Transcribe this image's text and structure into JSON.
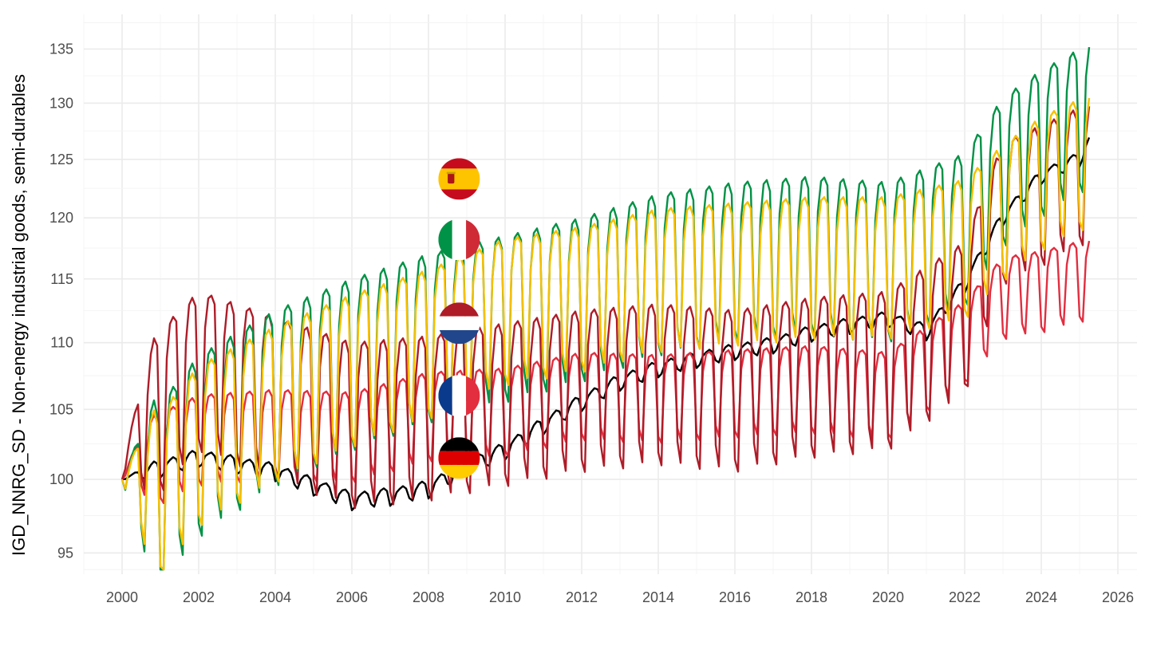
{
  "chart_data": {
    "type": "line",
    "xlabel": "",
    "ylabel": "IGD_NNRG_SD - Non-energy industrial goods, semi-durables",
    "x_range": [
      1999.0,
      2026.5
    ],
    "ylim": [
      93.6,
      138.3
    ],
    "y_scale": "log",
    "x_ticks": [
      2000,
      2002,
      2004,
      2006,
      2008,
      2010,
      2012,
      2014,
      2016,
      2018,
      2020,
      2022,
      2024,
      2026
    ],
    "x_tick_labels": [
      "2000",
      "2002",
      "2004",
      "2006",
      "2008",
      "2010",
      "2012",
      "2014",
      "2016",
      "2018",
      "2020",
      "2022",
      "2024",
      "2026"
    ],
    "y_ticks": [
      95,
      100,
      105,
      110,
      115,
      120,
      125,
      130,
      135
    ],
    "y_tick_labels": [
      "95",
      "100",
      "105",
      "110",
      "115",
      "120",
      "125",
      "130",
      "135"
    ],
    "grid": true,
    "legend": "flag icons near 2008.8",
    "series": [
      {
        "flag": "germany-flag-icon",
        "color": "#000000",
        "style": "smooth",
        "points": [
          [
            2000.0,
            100.0
          ],
          [
            2002.0,
            101.5
          ],
          [
            2004.0,
            100.5
          ],
          [
            2006.0,
            98.5
          ],
          [
            2007.0,
            98.8
          ],
          [
            2008.0,
            99.3
          ],
          [
            2009.0,
            100.8
          ],
          [
            2010.0,
            102.0
          ],
          [
            2011.0,
            103.8
          ],
          [
            2012.0,
            105.5
          ],
          [
            2013.0,
            107.0
          ],
          [
            2014.0,
            108.0
          ],
          [
            2015.0,
            108.7
          ],
          [
            2016.0,
            109.3
          ],
          [
            2017.0,
            109.8
          ],
          [
            2018.0,
            110.7
          ],
          [
            2019.0,
            111.3
          ],
          [
            2020.0,
            111.8
          ],
          [
            2021.0,
            110.8
          ],
          [
            2022.0,
            114.5
          ],
          [
            2023.0,
            120.0
          ],
          [
            2024.0,
            123.5
          ],
          [
            2025.0,
            125.0
          ],
          [
            2025.25,
            126.5
          ]
        ],
        "amplitude": 1.4,
        "label_marks": [
          {
            "x": 2008.8,
            "y": 101.5
          }
        ]
      },
      {
        "flag": "france-flag-icon",
        "color": "#e22e3f",
        "style": "seasonal",
        "points": [
          [
            2000.0,
            100.5
          ],
          [
            2001.0,
            101.5
          ],
          [
            2002.0,
            102.8
          ],
          [
            2004.0,
            103.2
          ],
          [
            2006.0,
            103.0
          ],
          [
            2008.0,
            104.5
          ],
          [
            2010.0,
            104.8
          ],
          [
            2012.0,
            106.0
          ],
          [
            2014.0,
            105.8
          ],
          [
            2016.0,
            106.2
          ],
          [
            2018.0,
            106.5
          ],
          [
            2020.0,
            106.0
          ],
          [
            2022.0,
            110.0
          ],
          [
            2023.0,
            113.5
          ],
          [
            2024.0,
            114.0
          ],
          [
            2025.25,
            115.0
          ]
        ],
        "amplitude": 6.5,
        "label_marks": [
          {
            "x": 2008.8,
            "y": 106.0
          }
        ]
      },
      {
        "flag": "netherlands-flag-icon",
        "color": "#ae1c28",
        "style": "seasonal",
        "points": [
          [
            2000.0,
            101.0
          ],
          [
            2001.0,
            105.0
          ],
          [
            2002.0,
            108.0
          ],
          [
            2004.0,
            106.0
          ],
          [
            2006.0,
            104.0
          ],
          [
            2008.0,
            104.5
          ],
          [
            2010.0,
            105.5
          ],
          [
            2012.0,
            106.5
          ],
          [
            2014.0,
            107.0
          ],
          [
            2016.0,
            106.5
          ],
          [
            2018.0,
            107.5
          ],
          [
            2020.0,
            108.0
          ],
          [
            2022.0,
            112.0
          ],
          [
            2023.0,
            120.5
          ],
          [
            2024.0,
            122.0
          ],
          [
            2025.25,
            124.0
          ]
        ],
        "amplitude": 12.0,
        "label_marks": [
          {
            "x": 2008.8,
            "y": 111.5
          }
        ]
      },
      {
        "flag": "italy-flag-icon",
        "color": "#009246",
        "style": "seasonal",
        "points": [
          [
            2000.0,
            100.0
          ],
          [
            2001.0,
            99.0
          ],
          [
            2002.0,
            102.5
          ],
          [
            2004.0,
            106.0
          ],
          [
            2006.0,
            108.5
          ],
          [
            2008.0,
            110.5
          ],
          [
            2010.0,
            112.0
          ],
          [
            2012.0,
            113.5
          ],
          [
            2014.0,
            115.5
          ],
          [
            2016.0,
            116.5
          ],
          [
            2018.0,
            117.0
          ],
          [
            2020.0,
            116.5
          ],
          [
            2022.0,
            119.0
          ],
          [
            2023.0,
            124.0
          ],
          [
            2024.0,
            126.5
          ],
          [
            2025.25,
            129.0
          ]
        ],
        "amplitude": 13.0,
        "label_marks": [
          {
            "x": 2008.8,
            "y": 118.2
          }
        ]
      },
      {
        "flag": "spain-flag-icon",
        "color": "#f6c000",
        "style": "seasonal",
        "points": [
          [
            2000.0,
            100.0
          ],
          [
            2001.0,
            99.0
          ],
          [
            2002.0,
            102.5
          ],
          [
            2004.0,
            105.5
          ],
          [
            2006.0,
            108.0
          ],
          [
            2008.0,
            110.0
          ],
          [
            2010.0,
            112.5
          ],
          [
            2012.0,
            113.5
          ],
          [
            2014.0,
            115.0
          ],
          [
            2016.0,
            115.5
          ],
          [
            2018.0,
            116.0
          ],
          [
            2020.0,
            116.0
          ],
          [
            2022.0,
            117.5
          ],
          [
            2023.0,
            120.5
          ],
          [
            2024.0,
            123.0
          ],
          [
            2025.25,
            125.0
          ]
        ],
        "amplitude": 11.5,
        "label_marks": [
          {
            "x": 2008.8,
            "y": 123.3
          }
        ]
      }
    ]
  }
}
